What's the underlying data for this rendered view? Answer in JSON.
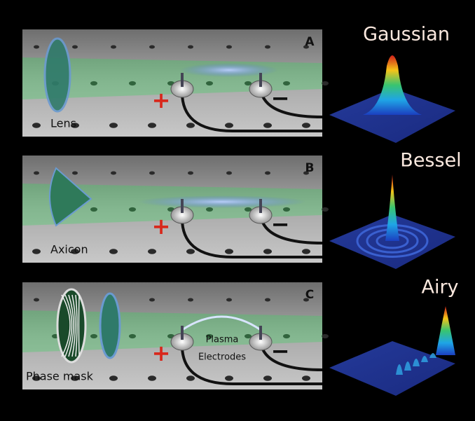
{
  "panels": [
    {
      "label": "A",
      "optic": "Lens",
      "beam": "Gaussian",
      "plus": "+",
      "minus": "−"
    },
    {
      "label": "B",
      "optic": "Axicon",
      "beam": "Bessel",
      "plus": "+",
      "minus": "−"
    },
    {
      "label": "C",
      "optic": "Phase mask",
      "beam": "Airy",
      "plus": "+",
      "minus": "−",
      "plasma": "Plasma",
      "electrodes": "Electrodes"
    }
  ]
}
